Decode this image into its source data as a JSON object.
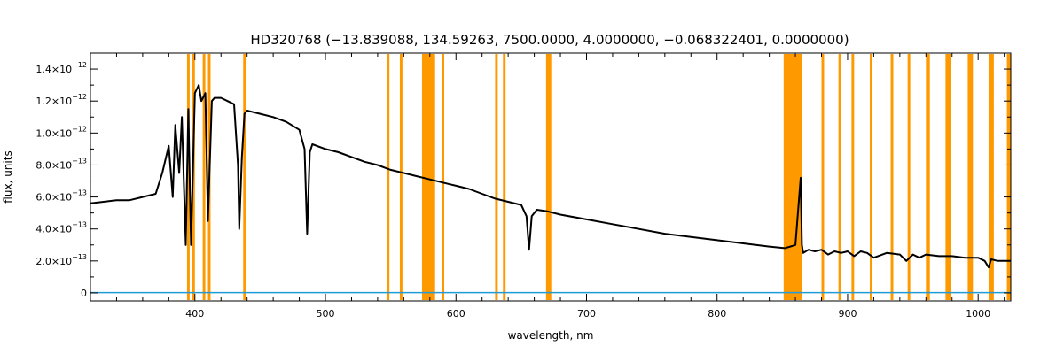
{
  "chart_data": {
    "type": "line",
    "title": "HD320768   (−13.839088, 134.59263, 7500.0000, 4.0000000, −0.068322401, 0.0000000)",
    "xlabel": "wavelength, nm",
    "ylabel": "flux, units",
    "xlim": [
      320,
      1025
    ],
    "ylim": [
      -0.05,
      1.5
    ],
    "y_scale_note": "values in units of 1e-12",
    "grid": false,
    "x_ticks": [
      {
        "value": 400,
        "label": "400"
      },
      {
        "value": 500,
        "label": "500"
      },
      {
        "value": 600,
        "label": "600"
      },
      {
        "value": 700,
        "label": "700"
      },
      {
        "value": 800,
        "label": "800"
      },
      {
        "value": 900,
        "label": "900"
      },
      {
        "value": 1000,
        "label": "1000"
      }
    ],
    "y_ticks": [
      {
        "value": 0.0,
        "mant": "0",
        "exp": ""
      },
      {
        "value": 0.2,
        "mant": "2.0×10",
        "exp": "−13"
      },
      {
        "value": 0.4,
        "mant": "4.0×10",
        "exp": "−13"
      },
      {
        "value": 0.6,
        "mant": "6.0×10",
        "exp": "−13"
      },
      {
        "value": 0.8,
        "mant": "8.0×10",
        "exp": "−13"
      },
      {
        "value": 1.0,
        "mant": "1.0×10",
        "exp": "−12"
      },
      {
        "value": 1.2,
        "mant": "1.2×10",
        "exp": "−12"
      },
      {
        "value": 1.4,
        "mant": "1.4×10",
        "exp": "−12"
      }
    ],
    "masked_bands_nm": [
      [
        394,
        396
      ],
      [
        398,
        400
      ],
      [
        406,
        408
      ],
      [
        410,
        412
      ],
      [
        437,
        439
      ],
      [
        547,
        549
      ],
      [
        557,
        559
      ],
      [
        574,
        584
      ],
      [
        589,
        591
      ],
      [
        630,
        632
      ],
      [
        636,
        638
      ],
      [
        669,
        673
      ],
      [
        851,
        865
      ],
      [
        880,
        882
      ],
      [
        893,
        895
      ],
      [
        903,
        905
      ],
      [
        917,
        919
      ],
      [
        933,
        935
      ],
      [
        946,
        948
      ],
      [
        960,
        963
      ],
      [
        975,
        979
      ],
      [
        992,
        996
      ],
      [
        1008,
        1012
      ],
      [
        1022,
        1025
      ]
    ],
    "series": [
      {
        "color": "#000000",
        "x": [
          320,
          330,
          340,
          350,
          360,
          370,
          375,
          380,
          383,
          385,
          388,
          390,
          393,
          395,
          397,
          400,
          403,
          405,
          408,
          410,
          413,
          415,
          420,
          425,
          430,
          433,
          434,
          436,
          438,
          440,
          450,
          460,
          470,
          480,
          484,
          486,
          488,
          490,
          500,
          510,
          520,
          530,
          540,
          550,
          560,
          570,
          580,
          590,
          600,
          610,
          620,
          630,
          640,
          650,
          654,
          656,
          658,
          662,
          670,
          680,
          700,
          720,
          740,
          760,
          780,
          800,
          820,
          840,
          852,
          860,
          864,
          865,
          866,
          870,
          875,
          880,
          885,
          890,
          895,
          900,
          905,
          910,
          915,
          920,
          930,
          940,
          945,
          950,
          955,
          960,
          970,
          980,
          990,
          1000,
          1005,
          1008,
          1010,
          1015,
          1025
        ],
        "y": [
          0.56,
          0.57,
          0.58,
          0.58,
          0.6,
          0.62,
          0.75,
          0.92,
          0.6,
          1.05,
          0.75,
          1.1,
          0.3,
          1.15,
          0.3,
          1.25,
          1.3,
          1.2,
          1.25,
          0.45,
          1.2,
          1.22,
          1.22,
          1.2,
          1.18,
          0.8,
          0.4,
          0.85,
          1.12,
          1.14,
          1.12,
          1.1,
          1.07,
          1.02,
          0.9,
          0.37,
          0.88,
          0.93,
          0.9,
          0.88,
          0.85,
          0.82,
          0.8,
          0.77,
          0.75,
          0.73,
          0.71,
          0.69,
          0.67,
          0.65,
          0.62,
          0.59,
          0.57,
          0.55,
          0.48,
          0.27,
          0.48,
          0.52,
          0.51,
          0.49,
          0.46,
          0.43,
          0.4,
          0.37,
          0.35,
          0.33,
          0.31,
          0.29,
          0.28,
          0.3,
          0.72,
          0.3,
          0.25,
          0.27,
          0.26,
          0.27,
          0.24,
          0.26,
          0.25,
          0.26,
          0.23,
          0.26,
          0.25,
          0.22,
          0.25,
          0.24,
          0.2,
          0.24,
          0.22,
          0.24,
          0.23,
          0.23,
          0.22,
          0.22,
          0.2,
          0.16,
          0.21,
          0.2,
          0.2
        ]
      },
      {
        "color": "#1f9bd8",
        "x": [
          320,
          1025
        ],
        "y": [
          0.002,
          0.002
        ]
      }
    ]
  }
}
